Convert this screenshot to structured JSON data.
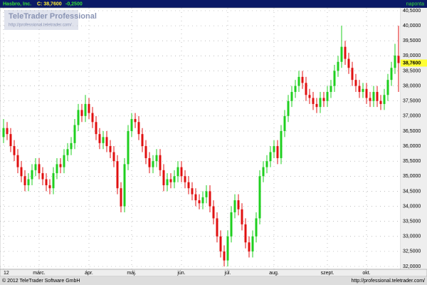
{
  "header": {
    "symbol": "Hasbro, Inc.",
    "close_text": "C: 38,7600",
    "change_text": "-0,2500",
    "period": "naponta"
  },
  "watermark": {
    "title": "TeleTrader Professional",
    "url": "http://professional.teletrader.com/"
  },
  "footer": {
    "copyright": "© 2012 TeleTrader Software GmbH",
    "url": "http://professional.teletrader.com/"
  },
  "chart_data": {
    "type": "candlestick",
    "grid": true,
    "up_color": "#1fcf1f",
    "down_color": "#e01010",
    "categories": [
      "12",
      null,
      null,
      null,
      null,
      null,
      null,
      null,
      null,
      null,
      "márc.",
      null,
      null,
      null,
      null,
      null,
      null,
      null,
      null,
      null,
      null,
      null,
      null,
      null,
      "ápr.",
      null,
      null,
      null,
      null,
      null,
      null,
      null,
      null,
      null,
      null,
      null,
      "máj.",
      null,
      null,
      null,
      null,
      null,
      null,
      null,
      null,
      null,
      null,
      null,
      null,
      null,
      "jún.",
      null,
      null,
      null,
      null,
      null,
      null,
      null,
      null,
      null,
      null,
      null,
      null,
      "júl.",
      null,
      null,
      null,
      null,
      null,
      null,
      null,
      null,
      null,
      null,
      null,
      null,
      "aug.",
      null,
      null,
      null,
      null,
      null,
      null,
      null,
      null,
      null,
      null,
      null,
      null,
      null,
      null,
      "szept.",
      null,
      null,
      null,
      null,
      null,
      null,
      null,
      null,
      null,
      null,
      "okt.",
      null,
      null,
      null,
      null,
      null,
      null,
      null,
      null,
      null
    ],
    "open": [
      36.3,
      36.6,
      36.4,
      36.0,
      35.7,
      35.3,
      35.0,
      34.7,
      34.9,
      35.2,
      35.4,
      35.1,
      34.9,
      34.7,
      34.6,
      35.1,
      35.4,
      35.3,
      35.7,
      35.9,
      36.1,
      36.7,
      37.2,
      37.0,
      37.4,
      37.1,
      36.8,
      36.4,
      36.1,
      36.3,
      36.0,
      35.8,
      35.5,
      34.6,
      34.0,
      35.4,
      36.5,
      36.9,
      36.8,
      36.4,
      36.0,
      35.6,
      35.3,
      35.5,
      35.7,
      35.2,
      34.7,
      34.9,
      34.8,
      35.0,
      35.3,
      35.0,
      34.8,
      34.6,
      34.4,
      34.2,
      34.1,
      34.3,
      34.5,
      34.0,
      33.6,
      33.0,
      32.5,
      32.2,
      33.0,
      33.8,
      34.2,
      33.9,
      33.4,
      32.8,
      32.5,
      33.0,
      33.6,
      35.0,
      35.3,
      35.5,
      35.8,
      36.0,
      35.6,
      36.5,
      37.0,
      37.5,
      37.8,
      38.0,
      38.3,
      38.1,
      37.7,
      37.6,
      37.4,
      37.3,
      37.6,
      37.5,
      37.8,
      38.0,
      38.5,
      38.8,
      39.3,
      38.9,
      38.6,
      38.2,
      38.0,
      37.8,
      37.9,
      37.6,
      37.5,
      37.8,
      37.5,
      37.4,
      37.7,
      38.2,
      38.6,
      39.0
    ],
    "high": [
      36.9,
      36.8,
      36.6,
      36.2,
      35.9,
      35.5,
      35.2,
      35.1,
      35.4,
      35.6,
      35.6,
      35.3,
      35.1,
      34.9,
      35.3,
      35.6,
      35.6,
      35.9,
      36.1,
      36.3,
      36.9,
      37.4,
      37.4,
      37.7,
      37.6,
      37.3,
      37.0,
      36.6,
      36.5,
      36.5,
      36.2,
      36.0,
      35.7,
      34.8,
      35.6,
      36.7,
      37.1,
      37.1,
      37.0,
      36.6,
      36.2,
      35.8,
      35.7,
      35.9,
      35.9,
      35.4,
      35.1,
      35.1,
      35.2,
      35.5,
      35.5,
      35.2,
      35.0,
      34.8,
      34.6,
      34.4,
      34.5,
      34.7,
      34.7,
      34.2,
      33.8,
      33.2,
      32.7,
      33.2,
      34.0,
      34.4,
      34.4,
      34.1,
      33.6,
      33.0,
      33.2,
      33.8,
      35.2,
      35.5,
      35.7,
      36.0,
      36.2,
      36.2,
      36.7,
      37.2,
      37.7,
      38.0,
      38.2,
      38.5,
      38.5,
      38.3,
      37.9,
      37.8,
      37.6,
      37.8,
      37.8,
      38.0,
      38.2,
      38.7,
      39.0,
      40.0,
      39.5,
      39.1,
      38.8,
      38.4,
      38.2,
      38.1,
      38.1,
      37.8,
      38.0,
      38.0,
      37.7,
      37.9,
      38.4,
      38.8,
      39.4,
      40.0
    ],
    "low": [
      36.1,
      36.2,
      35.8,
      35.5,
      35.1,
      34.8,
      34.5,
      34.5,
      34.7,
      35.0,
      34.9,
      34.7,
      34.5,
      34.4,
      34.4,
      34.9,
      35.1,
      35.1,
      35.5,
      35.7,
      35.9,
      36.5,
      36.8,
      36.8,
      36.9,
      36.6,
      36.2,
      35.9,
      35.9,
      35.8,
      35.6,
      35.3,
      34.4,
      33.8,
      33.8,
      35.2,
      36.3,
      36.6,
      36.2,
      35.8,
      35.4,
      35.1,
      35.1,
      35.3,
      35.0,
      34.5,
      34.5,
      34.6,
      34.6,
      34.8,
      34.8,
      34.6,
      34.4,
      34.2,
      34.0,
      33.9,
      33.9,
      34.1,
      33.8,
      33.4,
      32.8,
      32.3,
      32.0,
      32.0,
      32.8,
      33.6,
      33.7,
      33.2,
      32.6,
      32.3,
      32.3,
      32.8,
      33.4,
      34.8,
      35.1,
      35.3,
      35.6,
      35.4,
      35.4,
      36.3,
      36.8,
      37.3,
      37.6,
      37.8,
      37.9,
      37.5,
      37.4,
      37.2,
      37.1,
      37.1,
      37.3,
      37.3,
      37.6,
      37.8,
      38.3,
      38.6,
      38.7,
      38.4,
      38.0,
      37.8,
      37.6,
      37.6,
      37.4,
      37.3,
      37.3,
      37.3,
      37.2,
      37.2,
      37.5,
      38.0,
      38.4,
      37.8
    ],
    "close": [
      36.6,
      36.4,
      36.0,
      35.7,
      35.3,
      35.0,
      34.7,
      34.9,
      35.2,
      35.4,
      35.1,
      34.9,
      34.7,
      34.6,
      35.1,
      35.4,
      35.3,
      35.7,
      35.9,
      36.1,
      36.7,
      37.2,
      37.0,
      37.4,
      37.1,
      36.8,
      36.4,
      36.1,
      36.3,
      36.0,
      35.8,
      35.5,
      34.6,
      34.0,
      35.4,
      36.5,
      36.9,
      36.8,
      36.4,
      36.0,
      35.6,
      35.3,
      35.5,
      35.7,
      35.2,
      34.7,
      34.9,
      34.8,
      35.0,
      35.3,
      35.0,
      34.8,
      34.6,
      34.4,
      34.2,
      34.1,
      34.3,
      34.5,
      34.0,
      33.6,
      33.0,
      32.5,
      32.2,
      33.0,
      33.8,
      34.2,
      33.9,
      33.4,
      32.8,
      32.5,
      33.0,
      33.6,
      35.0,
      35.3,
      35.5,
      35.8,
      36.0,
      35.6,
      36.5,
      37.0,
      37.5,
      37.8,
      38.0,
      38.3,
      38.1,
      37.7,
      37.6,
      37.4,
      37.3,
      37.6,
      37.5,
      37.8,
      38.0,
      38.5,
      38.8,
      39.3,
      38.9,
      38.6,
      38.2,
      38.0,
      37.8,
      37.9,
      37.6,
      37.5,
      37.8,
      37.5,
      37.4,
      37.7,
      38.2,
      38.6,
      39.01,
      38.76
    ],
    "ylim": [
      32,
      40.5
    ],
    "yticks": [
      {
        "value": 32,
        "label": "32,0000"
      },
      {
        "value": 32.5,
        "label": "32,5000"
      },
      {
        "value": 33,
        "label": "33,0000"
      },
      {
        "value": 33.5,
        "label": "33,5000"
      },
      {
        "value": 34,
        "label": "34,0000"
      },
      {
        "value": 34.5,
        "label": "34,5000"
      },
      {
        "value": 35,
        "label": "35,0000"
      },
      {
        "value": 35.5,
        "label": "35,5000"
      },
      {
        "value": 36,
        "label": "36,0000"
      },
      {
        "value": 36.5,
        "label": "36,5000"
      },
      {
        "value": 37,
        "label": "37,0000"
      },
      {
        "value": 37.5,
        "label": "37,5000"
      },
      {
        "value": 38,
        "label": "38,0000"
      },
      {
        "value": 38.5,
        "label": "38,5000"
      },
      {
        "value": 39,
        "label": "39,0000"
      },
      {
        "value": 39.5,
        "label": "39,5000"
      },
      {
        "value": 40,
        "label": "40,0000"
      },
      {
        "value": 40.5,
        "label": "40,5000"
      }
    ],
    "last_price": {
      "value": 38.76,
      "label": "38,7600"
    }
  }
}
